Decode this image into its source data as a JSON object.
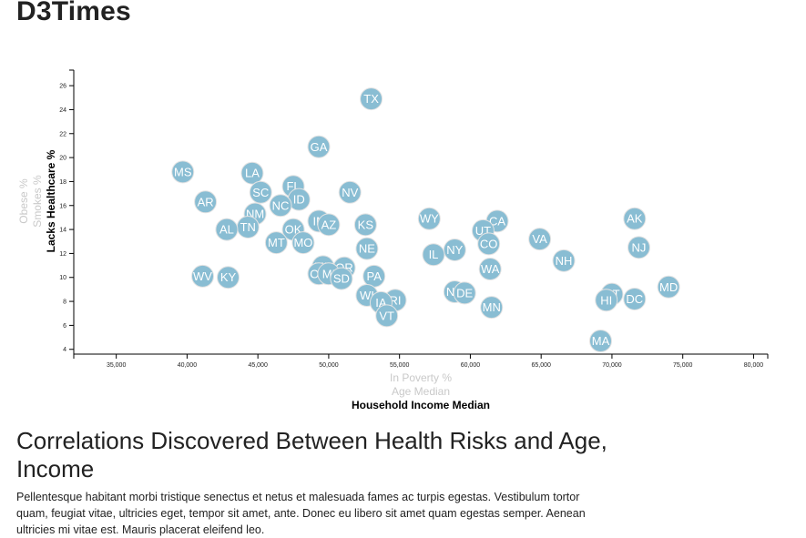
{
  "page": {
    "title": "D3Times",
    "article_title": "Correlations Discovered Between Health Risks and Age, Income",
    "article_body": "Pellentesque habitant morbi tristique senectus et netus et malesuada fames ac turpis egestas. Vestibulum tortor quam, feugiat vitae, ultricies eget, tempor sit amet, ante. Donec eu libero sit amet quam egestas semper. Aenean ultricies mi vitae est. Mauris placerat eleifend leo."
  },
  "colors": {
    "circle": "#89bdd3",
    "circle_stroke": "#e3e3e3",
    "label": "#ffffff",
    "inactive_axis": "#c9c9c9",
    "active_axis": "#000000"
  },
  "chart_data": {
    "type": "scatter",
    "x_axis_options": [
      {
        "label": "In Poverty %",
        "active": false
      },
      {
        "label": "Age Median",
        "active": false
      },
      {
        "label": "Household Income Median",
        "active": true
      }
    ],
    "y_axis_options": [
      {
        "label": "Obese %",
        "active": false
      },
      {
        "label": "Smokes %",
        "active": false
      },
      {
        "label": "Lacks Healthcare %",
        "active": true
      }
    ],
    "xlim": [
      32000,
      81000
    ],
    "ylim": [
      3.6,
      27.3
    ],
    "x_ticks": [
      35000,
      40000,
      45000,
      50000,
      55000,
      60000,
      65000,
      70000,
      75000,
      80000
    ],
    "x_tick_labels": [
      "35,000",
      "40,000",
      "45,000",
      "50,000",
      "55,000",
      "60,000",
      "65,000",
      "70,000",
      "75,000",
      "80,000"
    ],
    "y_ticks": [
      4,
      6,
      8,
      10,
      12,
      14,
      16,
      18,
      20,
      22,
      24,
      26
    ],
    "y_tick_labels": [
      "4",
      "6",
      "8",
      "10",
      "12",
      "14",
      "16",
      "18",
      "20",
      "22",
      "24",
      "26"
    ],
    "points": [
      {
        "abbr": "TX",
        "x": 53000,
        "y": 24.9
      },
      {
        "abbr": "GA",
        "x": 49300,
        "y": 20.9
      },
      {
        "abbr": "MS",
        "x": 39700,
        "y": 18.8
      },
      {
        "abbr": "LA",
        "x": 44600,
        "y": 18.7
      },
      {
        "abbr": "FL",
        "x": 47500,
        "y": 17.6
      },
      {
        "abbr": "SC",
        "x": 45200,
        "y": 17.1
      },
      {
        "abbr": "NV",
        "x": 51500,
        "y": 17.1
      },
      {
        "abbr": "ID",
        "x": 47900,
        "y": 16.5
      },
      {
        "abbr": "AR",
        "x": 41300,
        "y": 16.3
      },
      {
        "abbr": "NC",
        "x": 46600,
        "y": 16.0
      },
      {
        "abbr": "NM",
        "x": 44800,
        "y": 15.3
      },
      {
        "abbr": "WY",
        "x": 57100,
        "y": 14.9
      },
      {
        "abbr": "AK",
        "x": 71600,
        "y": 14.9
      },
      {
        "abbr": "IN",
        "x": 49300,
        "y": 14.7
      },
      {
        "abbr": "CA",
        "x": 61900,
        "y": 14.7
      },
      {
        "abbr": "AZ",
        "x": 50000,
        "y": 14.4
      },
      {
        "abbr": "KS",
        "x": 52600,
        "y": 14.4
      },
      {
        "abbr": "TN",
        "x": 44300,
        "y": 14.2
      },
      {
        "abbr": "AL",
        "x": 42800,
        "y": 14.0
      },
      {
        "abbr": "OK",
        "x": 47500,
        "y": 14.0
      },
      {
        "abbr": "UT",
        "x": 60900,
        "y": 13.9
      },
      {
        "abbr": "VA",
        "x": 64900,
        "y": 13.2
      },
      {
        "abbr": "MT",
        "x": 46300,
        "y": 12.9
      },
      {
        "abbr": "MO",
        "x": 48200,
        "y": 12.9
      },
      {
        "abbr": "CO",
        "x": 61300,
        "y": 12.8
      },
      {
        "abbr": "NJ",
        "x": 71900,
        "y": 12.5
      },
      {
        "abbr": "NE",
        "x": 52700,
        "y": 12.4
      },
      {
        "abbr": "NY",
        "x": 58900,
        "y": 12.3
      },
      {
        "abbr": "IL",
        "x": 57400,
        "y": 11.9
      },
      {
        "abbr": "NH",
        "x": 66600,
        "y": 11.4
      },
      {
        "abbr": "ME",
        "x": 49600,
        "y": 10.9
      },
      {
        "abbr": "OR",
        "x": 51100,
        "y": 10.8
      },
      {
        "abbr": "WA",
        "x": 61400,
        "y": 10.7
      },
      {
        "abbr": "OH",
        "x": 49300,
        "y": 10.3
      },
      {
        "abbr": "MI",
        "x": 50000,
        "y": 10.3
      },
      {
        "abbr": "WV",
        "x": 41100,
        "y": 10.1
      },
      {
        "abbr": "KY",
        "x": 42900,
        "y": 10.0
      },
      {
        "abbr": "PA",
        "x": 53200,
        "y": 10.1
      },
      {
        "abbr": "SD",
        "x": 50900,
        "y": 9.9
      },
      {
        "abbr": "MD",
        "x": 74000,
        "y": 9.2
      },
      {
        "abbr": "ND",
        "x": 58900,
        "y": 8.8
      },
      {
        "abbr": "DE",
        "x": 59600,
        "y": 8.7
      },
      {
        "abbr": "CT",
        "x": 70000,
        "y": 8.6
      },
      {
        "abbr": "WI",
        "x": 52700,
        "y": 8.5
      },
      {
        "abbr": "DC",
        "x": 71600,
        "y": 8.2
      },
      {
        "abbr": "HI",
        "x": 69600,
        "y": 8.1
      },
      {
        "abbr": "RI",
        "x": 54700,
        "y": 8.1
      },
      {
        "abbr": "IA",
        "x": 53700,
        "y": 7.9
      },
      {
        "abbr": "MN",
        "x": 61500,
        "y": 7.5
      },
      {
        "abbr": "VT",
        "x": 54100,
        "y": 6.8
      },
      {
        "abbr": "MA",
        "x": 69200,
        "y": 4.7
      }
    ]
  }
}
